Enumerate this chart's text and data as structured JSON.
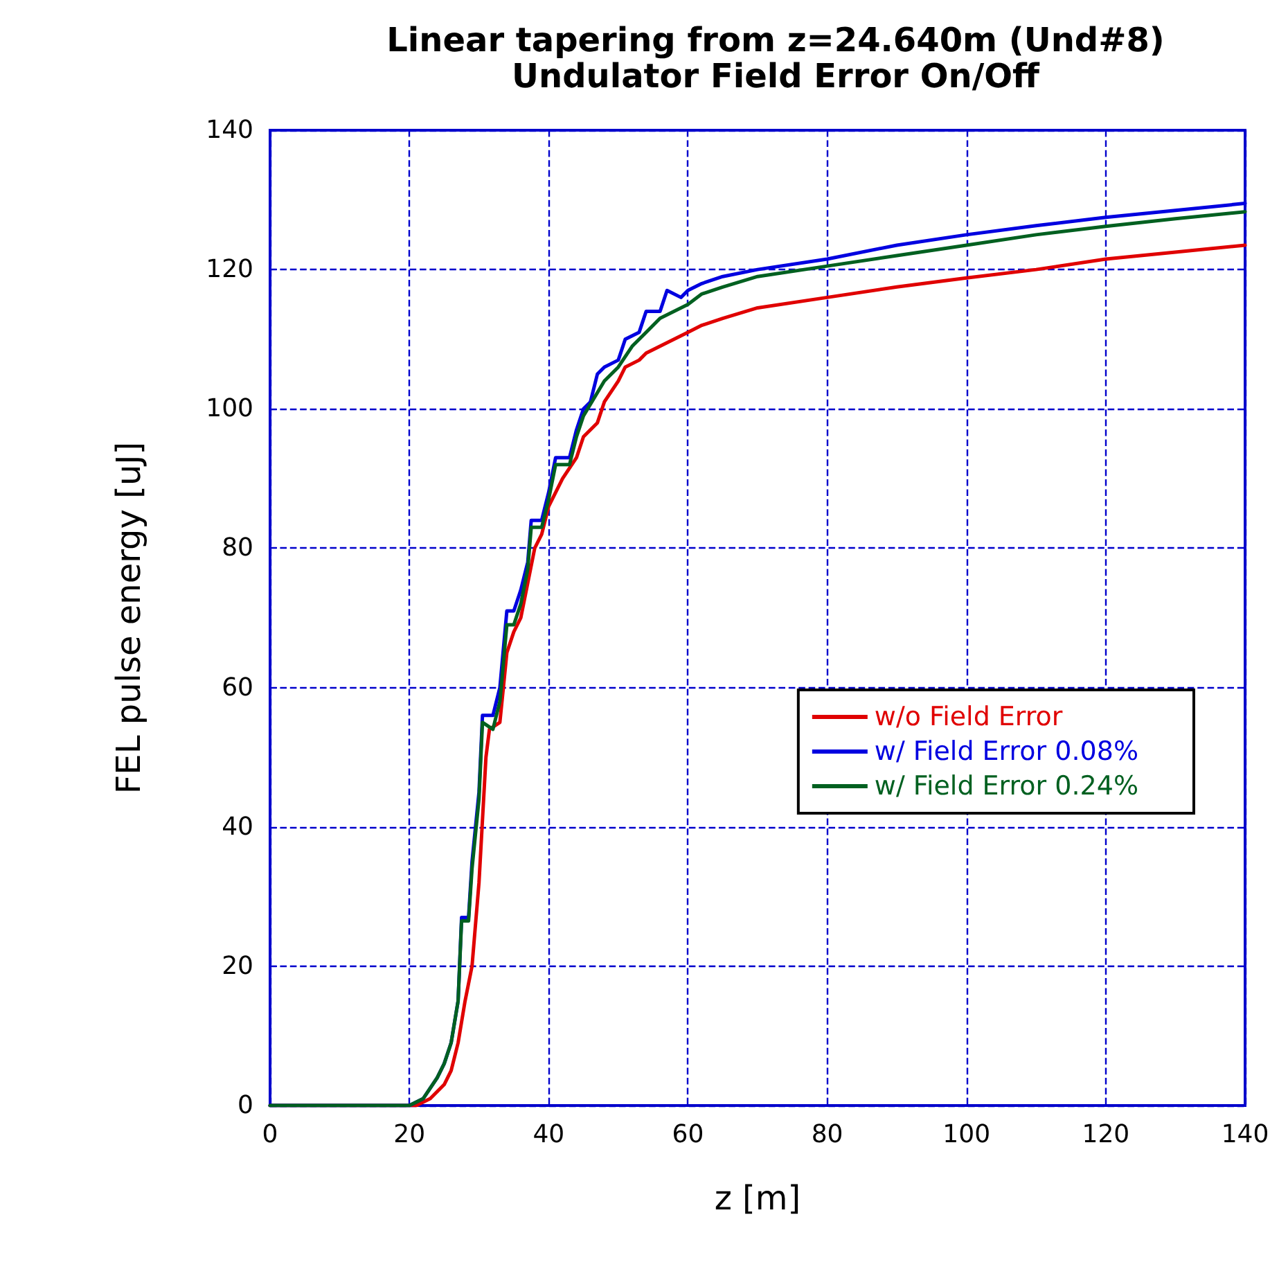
{
  "chart_data": {
    "type": "line",
    "title": "Linear tapering from z=24.640m (Und#8)",
    "subtitle": "Undulator Field Error On/Off",
    "xlabel": "z [m]",
    "ylabel": "FEL pulse energy [uJ]",
    "xlim": [
      0,
      140
    ],
    "xticks": [
      0,
      20,
      40,
      60,
      80,
      100,
      120,
      140
    ],
    "ylim": [
      0,
      140
    ],
    "yticks": [
      0,
      20,
      40,
      60,
      80,
      100,
      120,
      140
    ],
    "grid": true,
    "legend": "right",
    "marker": "none",
    "line_style": "solid",
    "series": [
      {
        "name": "w/o Field Error",
        "color": "#e00000",
        "x": [
          0,
          21,
          23,
          25,
          26,
          27,
          28,
          29,
          30,
          31,
          31.5,
          33,
          34,
          35,
          36,
          37,
          38,
          39,
          40,
          42,
          44,
          45,
          47,
          48,
          50,
          51,
          53,
          54,
          56,
          58,
          60,
          62,
          65,
          70,
          80,
          90,
          100,
          110,
          120,
          130,
          140
        ],
        "values": [
          0,
          0,
          1,
          3,
          5,
          9,
          15,
          20,
          32,
          50,
          54,
          55,
          65,
          68,
          70,
          75,
          80,
          82,
          86,
          90,
          93,
          96,
          98,
          101,
          104,
          106,
          107,
          108,
          109,
          110,
          111,
          112,
          113,
          114.5,
          116,
          117.5,
          118.8,
          120,
          121.5,
          122.5,
          123.5
        ]
      },
      {
        "name": "w/ Field Error 0.08%",
        "color": "#0000e0",
        "x": [
          0,
          20,
          22,
          24,
          25,
          26,
          27,
          27.5,
          28.5,
          29,
          30,
          30.5,
          32,
          33,
          34,
          35,
          36,
          37,
          37.5,
          39,
          40,
          41,
          43,
          44,
          45,
          46,
          47,
          48,
          50,
          51,
          53,
          54,
          56,
          57,
          59,
          60,
          62,
          65,
          70,
          80,
          90,
          100,
          110,
          120,
          130,
          140
        ],
        "values": [
          0,
          0,
          1,
          4,
          6,
          9,
          15,
          27,
          27,
          35,
          45,
          56,
          56,
          60,
          71,
          71,
          74,
          78,
          84,
          84,
          88,
          93,
          93,
          97,
          100,
          101,
          105,
          106,
          107,
          110,
          111,
          114,
          114,
          117,
          116,
          117,
          118,
          119,
          120,
          121.5,
          123.5,
          125,
          126.3,
          127.5,
          128.5,
          129.5
        ]
      },
      {
        "name": "w/ Field Error 0.24%",
        "color": "#006020",
        "x": [
          0,
          20,
          22,
          24,
          25,
          26,
          27,
          27.5,
          28.5,
          29,
          30,
          30.5,
          32,
          33,
          34,
          35,
          36,
          37,
          37.5,
          39,
          40,
          41,
          43,
          44,
          45,
          48,
          50,
          52,
          54,
          56,
          58,
          60,
          62,
          65,
          70,
          80,
          90,
          100,
          110,
          120,
          130,
          140
        ],
        "values": [
          0,
          0,
          1,
          4,
          6,
          9,
          15,
          26.5,
          26.5,
          34,
          44,
          55,
          54,
          58,
          69,
          69,
          72,
          77,
          83,
          83,
          87,
          92,
          92,
          96,
          99,
          104,
          106,
          109,
          111,
          113,
          114,
          115,
          116.5,
          117.5,
          119,
          120.5,
          122,
          123.5,
          125,
          126.2,
          127.3,
          128.3
        ]
      }
    ]
  }
}
